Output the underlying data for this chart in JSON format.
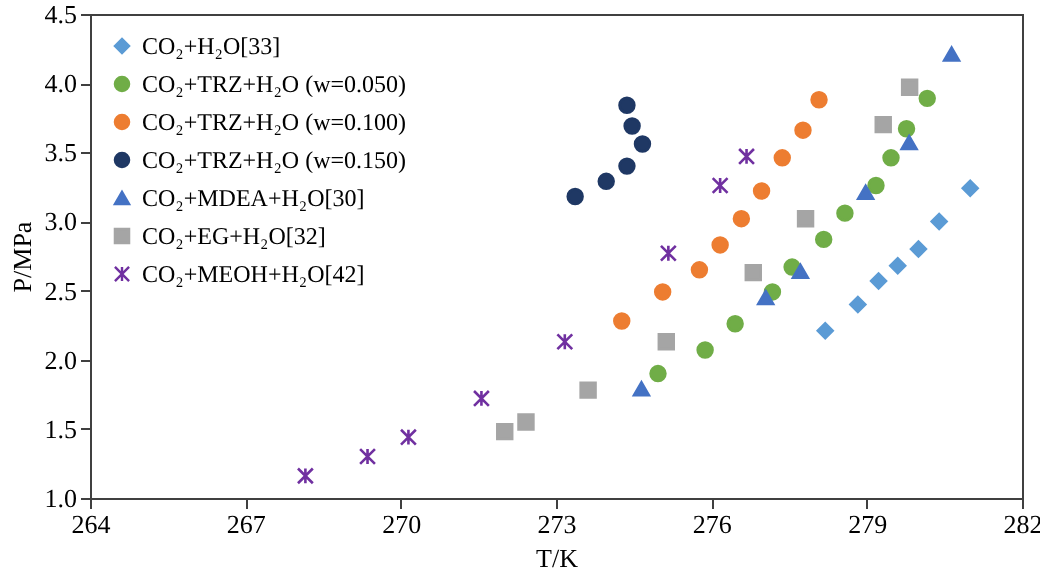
{
  "chart_data": {
    "type": "scatter",
    "xlabel": "T/K",
    "ylabel": "P/MPa",
    "xlim": [
      264,
      282
    ],
    "xticks": [
      264,
      267,
      270,
      273,
      276,
      279,
      282
    ],
    "ylim": [
      1.0,
      4.5
    ],
    "yticks": [
      {
        "value": 1,
        "label": "1.0"
      },
      {
        "value": 1.5,
        "label": "1.5"
      },
      {
        "value": 2,
        "label": "2.0"
      },
      {
        "value": 2.5,
        "label": "2.5"
      },
      {
        "value": 3,
        "label": "3.0"
      },
      {
        "value": 3.5,
        "label": "3.5"
      },
      {
        "value": 4,
        "label": "4.0"
      },
      {
        "value": 4.5,
        "label": "4.5"
      }
    ],
    "grid": false,
    "legend": "top left",
    "series": [
      {
        "name": "CO₂+H₂O[33]",
        "color": "#5b9bd5",
        "marker": "diamond",
        "x": [
          278.2,
          278.83,
          279.23,
          279.6,
          280.0,
          280.4,
          281.0
        ],
        "values": [
          2.21,
          2.4,
          2.57,
          2.68,
          2.8,
          3.0,
          3.24
        ]
      },
      {
        "name": "CO₂+TRZ+H₂O (w=0.050)",
        "color": "#70ad47",
        "marker": "circle",
        "x": [
          274.97,
          275.88,
          276.46,
          277.18,
          277.56,
          278.17,
          278.58,
          279.18,
          279.47,
          279.77,
          280.17
        ],
        "values": [
          1.9,
          2.07,
          2.26,
          2.49,
          2.67,
          2.87,
          3.06,
          3.26,
          3.46,
          3.67,
          3.89
        ]
      },
      {
        "name": "CO₂+TRZ+H₂O (w=0.100)",
        "color": "#ed7d31",
        "marker": "circle",
        "x": [
          274.27,
          275.06,
          275.77,
          276.17,
          276.58,
          276.97,
          277.37,
          277.77,
          278.08
        ],
        "values": [
          2.28,
          2.49,
          2.65,
          2.83,
          3.02,
          3.22,
          3.46,
          3.66,
          3.88
        ]
      },
      {
        "name": "CO₂+TRZ+H₂O (w=0.150)",
        "color": "#1f3864",
        "marker": "circle",
        "x": [
          273.37,
          273.97,
          274.37,
          274.67,
          274.47,
          274.37
        ],
        "values": [
          3.18,
          3.29,
          3.4,
          3.56,
          3.69,
          3.84
        ]
      },
      {
        "name": "CO₂+MDEA+H₂O[30]",
        "color": "#4472c4",
        "marker": "triangle",
        "x": [
          274.65,
          277.05,
          277.72,
          278.98,
          279.82,
          280.64
        ],
        "values": [
          1.79,
          2.45,
          2.64,
          3.21,
          3.57,
          4.21
        ]
      },
      {
        "name": "CO₂+EG+H₂O[32]",
        "color": "#a5a5a5",
        "marker": "square",
        "x": [
          272.01,
          272.42,
          273.62,
          275.13,
          276.81,
          277.82,
          279.32,
          279.83
        ],
        "values": [
          1.48,
          1.55,
          1.78,
          2.13,
          2.63,
          3.02,
          3.7,
          3.97
        ]
      },
      {
        "name": "CO₂+MEOH+H₂O[42]",
        "color": "#7030a0",
        "marker": "cross",
        "x": [
          268.16,
          269.36,
          270.15,
          271.56,
          273.17,
          275.17,
          276.17,
          276.68
        ],
        "values": [
          1.16,
          1.3,
          1.44,
          1.72,
          2.13,
          2.77,
          3.26,
          3.47
        ]
      }
    ]
  }
}
